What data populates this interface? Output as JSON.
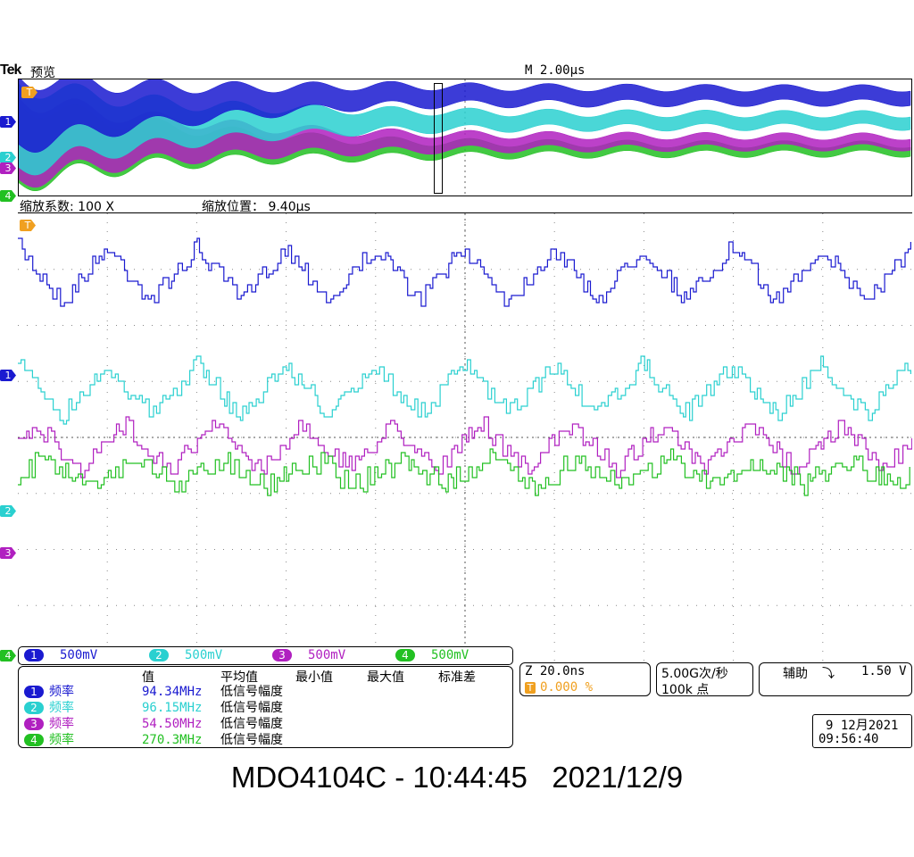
{
  "header": {
    "brand": "Tek",
    "mode": "预览",
    "timebase": "M 2.00µs"
  },
  "overview": {
    "zoom_factor_label": "缩放系数: 100 X",
    "zoom_position_label": "缩放位置：  9.40µs",
    "zoom_window_fraction": [
      0.465,
      0.475
    ]
  },
  "markers": {
    "trigger": "T",
    "ch1": "1",
    "ch2": "2",
    "ch3": "3",
    "ch4": "4"
  },
  "colors": {
    "ch1": "#1a1ad0",
    "ch2": "#2ad0d0",
    "ch3": "#b020c0",
    "ch4": "#22c022",
    "trigger": "#f0a020"
  },
  "channels": [
    {
      "num": "1",
      "scale": "500mV"
    },
    {
      "num": "2",
      "scale": "500mV"
    },
    {
      "num": "3",
      "scale": "500mV"
    },
    {
      "num": "4",
      "scale": "500mV"
    }
  ],
  "measurements": {
    "headers": [
      "值",
      "平均值",
      "最小值",
      "最大值",
      "标准差"
    ],
    "rows": [
      {
        "num": "1",
        "name": "频率",
        "value": "94.34MHz",
        "note": "低信号幅度"
      },
      {
        "num": "2",
        "name": "频率",
        "value": "96.15MHz",
        "note": "低信号幅度"
      },
      {
        "num": "3",
        "name": "频率",
        "value": "54.50MHz",
        "note": "低信号幅度"
      },
      {
        "num": "4",
        "name": "频率",
        "value": "270.3MHz",
        "note": "低信号幅度"
      }
    ]
  },
  "zoom_box": {
    "time": "Z 20.0ns",
    "trigger_pos": "0.000 %"
  },
  "sample_box": {
    "rate": "5.00G次/秒",
    "points": "100k 点"
  },
  "aux_box": {
    "label": "辅助",
    "edge_symbol": "⤵",
    "level": "1.50 V"
  },
  "datetime_box": {
    "date": "9 12月2021",
    "time": "09:56:40"
  },
  "caption": "MDO4104C - 10:44:45   2021/12/9"
}
